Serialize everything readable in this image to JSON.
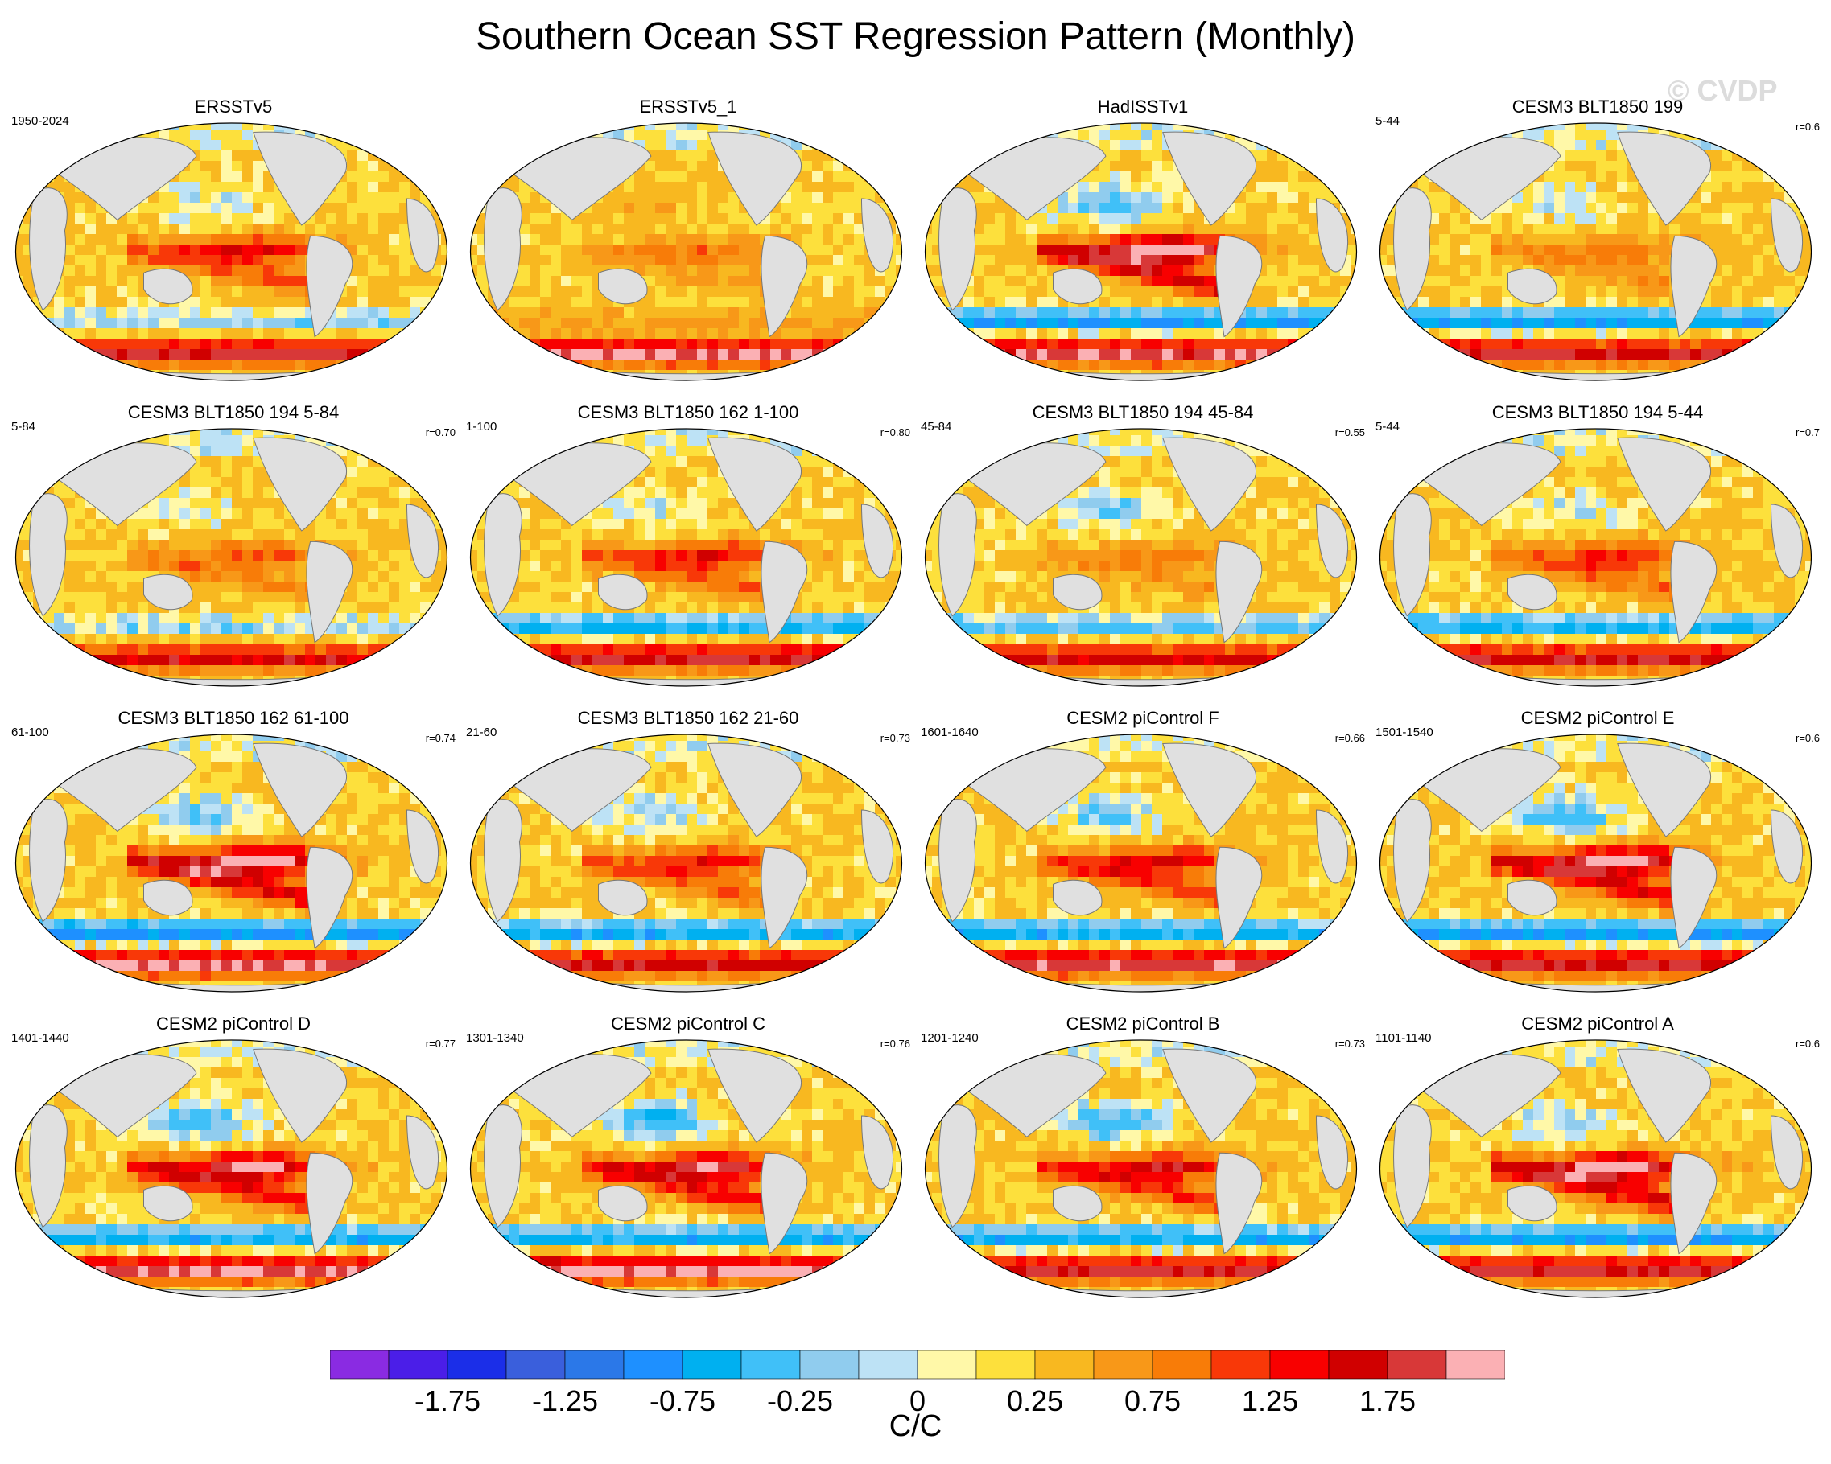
{
  "title": "Southern Ocean SST Regression Pattern (Monthly)",
  "watermark": "© CVDP",
  "units": "C/C",
  "chart_data": {
    "type": "heatmap",
    "projection": "global map (Robinson-like)",
    "title": "Southern Ocean SST Regression Pattern (Monthly)",
    "colorbar": {
      "label": "C/C",
      "levels": [
        -2.0,
        -1.75,
        -1.5,
        -1.25,
        -1.0,
        -0.75,
        -0.5,
        -0.25,
        -0.1,
        0,
        0.1,
        0.25,
        0.5,
        0.75,
        1.0,
        1.25,
        1.5,
        1.75,
        2.0
      ],
      "tick_labels": [
        "-1.75",
        "-1.25",
        "-0.75",
        "-0.25",
        "0",
        "0.25",
        "0.75",
        "1.25",
        "1.75"
      ],
      "colors": [
        "#8a2be2",
        "#4b1ee8",
        "#1b2ee8",
        "#3a5fdc",
        "#2b78e8",
        "#1e90ff",
        "#00b0f0",
        "#40c0f8",
        "#90ccee",
        "#bde2f5",
        "#fff8a8",
        "#fde03c",
        "#f8b820",
        "#f89818",
        "#f87c08",
        "#f83808",
        "#f80000",
        "#d00000",
        "#d83838",
        "#fbb0b4"
      ]
    },
    "panels": [
      {
        "title": "ERSSTv5",
        "left": "1950-2024",
        "right": "",
        "pattern": "obs1"
      },
      {
        "title": "ERSSTv5_1",
        "left": "",
        "right": "",
        "pattern": "obs2"
      },
      {
        "title": "HadISSTv1",
        "left": "",
        "right": "",
        "pattern": "obs3"
      },
      {
        "title": "CESM3 BLT1850 199",
        "left": "5-44",
        "right": "r=0.6",
        "pattern": "m1"
      },
      {
        "title": "CESM3 BLT1850 194 5-84",
        "left": "5-84",
        "right": "r=0.70",
        "pattern": "m2"
      },
      {
        "title": "CESM3 BLT1850 162 1-100",
        "left": "1-100",
        "right": "r=0.80",
        "pattern": "m3"
      },
      {
        "title": "CESM3 BLT1850 194 45-84",
        "left": "45-84",
        "right": "r=0.55",
        "pattern": "m4"
      },
      {
        "title": "CESM3 BLT1850 194 5-44",
        "left": "5-44",
        "right": "r=0.7",
        "pattern": "m5"
      },
      {
        "title": "CESM3 BLT1850 162 61-100",
        "left": "61-100",
        "right": "r=0.74",
        "pattern": "m6"
      },
      {
        "title": "CESM3 BLT1850 162 21-60",
        "left": "21-60",
        "right": "r=0.73",
        "pattern": "m7"
      },
      {
        "title": "CESM2 piControl F",
        "left": "1601-1640",
        "right": "r=0.66",
        "pattern": "m8"
      },
      {
        "title": "CESM2 piControl E",
        "left": "1501-1540",
        "right": "r=0.6",
        "pattern": "m9"
      },
      {
        "title": "CESM2 piControl D",
        "left": "1401-1440",
        "right": "r=0.77",
        "pattern": "m10"
      },
      {
        "title": "CESM2 piControl C",
        "left": "1301-1340",
        "right": "r=0.76",
        "pattern": "m11"
      },
      {
        "title": "CESM2 piControl B",
        "left": "1201-1240",
        "right": "r=0.73",
        "pattern": "m12"
      },
      {
        "title": "CESM2 piControl A",
        "left": "1101-1140",
        "right": "r=0.6",
        "pattern": "m13"
      }
    ]
  }
}
